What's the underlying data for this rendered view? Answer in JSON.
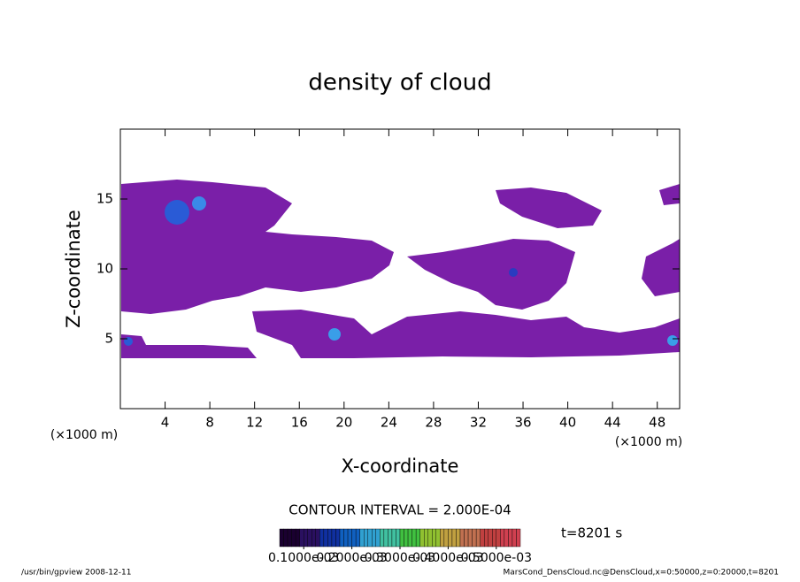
{
  "chart_data": {
    "type": "contour",
    "title": "density of cloud",
    "x_label": "X-coordinate",
    "y_label": "Z-coordinate",
    "x_unit": "(×1000 m)",
    "y_unit": "(×1000 m)",
    "xlim": [
      0,
      50
    ],
    "ylim": [
      0,
      20
    ],
    "xticks": [
      4,
      8,
      12,
      16,
      20,
      24,
      28,
      32,
      36,
      40,
      44,
      48
    ],
    "yticks": [
      5,
      10,
      15
    ],
    "contour_interval": "CONTOUR INTERVAL = 2.000E-04",
    "time_label": "t=8201 s",
    "colorbar": {
      "lim": [
        5e-05,
        0.00055
      ],
      "ticks": [
        {
          "value": 0.0001,
          "label": "0.1000e-03"
        },
        {
          "value": 0.0002,
          "label": "0.2000e-03"
        },
        {
          "value": 0.0003,
          "label": "0.3000e-03"
        },
        {
          "value": 0.0004,
          "label": "0.4000e-03"
        },
        {
          "value": 0.0005,
          "label": "0.5000e-03"
        }
      ]
    },
    "footer_left": "/usr/bin/gpview  2008-12-11",
    "footer_right": "MarsCond_DensCloud.nc@DensCloud,x=0:50000,z=0:20000,t=8201"
  }
}
